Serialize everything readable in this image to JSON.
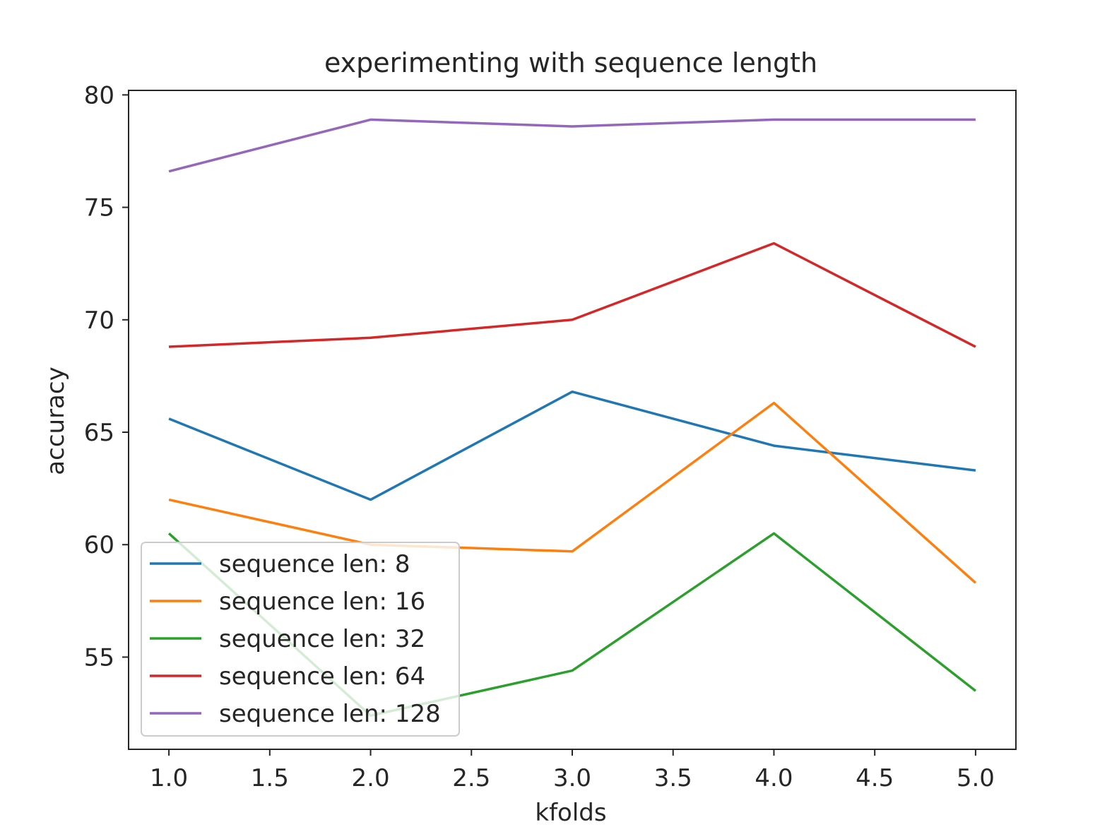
{
  "chart_data": {
    "type": "line",
    "title": "experimenting with sequence length",
    "xlabel": "kfolds",
    "ylabel": "accuracy",
    "xlim": [
      0.8,
      5.2
    ],
    "ylim": [
      50.9,
      80.2
    ],
    "x_ticks": [
      1.0,
      1.5,
      2.0,
      2.5,
      3.0,
      3.5,
      4.0,
      4.5,
      5.0
    ],
    "x_tick_labels": [
      "1.0",
      "1.5",
      "2.0",
      "2.5",
      "3.0",
      "3.5",
      "4.0",
      "4.5",
      "5.0"
    ],
    "y_ticks": [
      55,
      60,
      65,
      70,
      75,
      80
    ],
    "y_tick_labels": [
      "55",
      "60",
      "65",
      "70",
      "75",
      "80"
    ],
    "grid": false,
    "legend_position": "lower-left",
    "x": [
      1,
      2,
      3,
      4,
      5
    ],
    "series": [
      {
        "name": "sequence len: 8",
        "color": "#1f77b4",
        "values": [
          65.6,
          62.0,
          66.8,
          64.4,
          63.3
        ]
      },
      {
        "name": "sequence len: 16",
        "color": "#ff7f0e",
        "values": [
          62.0,
          60.0,
          59.7,
          66.3,
          58.3
        ]
      },
      {
        "name": "sequence len: 32",
        "color": "#2ca02c",
        "values": [
          60.5,
          52.4,
          54.4,
          60.5,
          53.5
        ]
      },
      {
        "name": "sequence len: 64",
        "color": "#d62728",
        "values": [
          68.8,
          69.2,
          70.0,
          73.4,
          68.8
        ]
      },
      {
        "name": "sequence len: 128",
        "color": "#9467bd",
        "values": [
          76.6,
          78.9,
          78.6,
          78.9,
          78.9
        ]
      }
    ]
  }
}
